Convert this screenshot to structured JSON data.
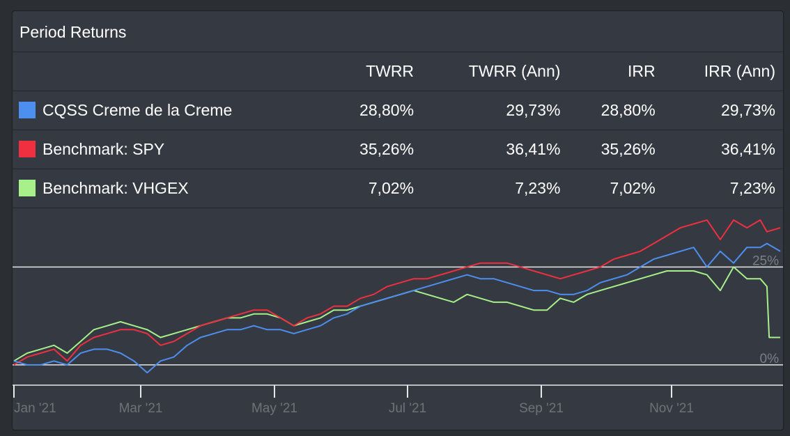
{
  "panel": {
    "title": "Period Returns"
  },
  "table": {
    "columns": [
      "TWRR",
      "TWRR (Ann)",
      "IRR",
      "IRR (Ann)"
    ],
    "rows": [
      {
        "name": "CQSS Creme de la Creme",
        "color": "#4d8fef",
        "values": [
          "28,80%",
          "29,73%",
          "28,80%",
          "29,73%"
        ]
      },
      {
        "name": "Benchmark: SPY",
        "color": "#ef3040",
        "values": [
          "35,26%",
          "36,41%",
          "35,26%",
          "36,41%"
        ]
      },
      {
        "name": "Benchmark: VHGEX",
        "color": "#a8f08a",
        "values": [
          "7,02%",
          "7,23%",
          "7,02%",
          "7,23%"
        ]
      }
    ]
  },
  "chart_data": {
    "type": "line",
    "x_ticks": [
      "Jan '21",
      "Mar '21",
      "May '21",
      "Jul '21",
      "Sep '21",
      "Nov '21"
    ],
    "y_ticks": [
      "0%",
      "25%"
    ],
    "ylim": [
      -5,
      40
    ],
    "grid": true,
    "series": [
      {
        "name": "Benchmark: VHGEX",
        "color": "#a8f08a",
        "x": [
          0,
          6,
          12,
          18,
          24,
          30,
          36,
          42,
          48,
          54,
          60,
          66,
          72,
          78,
          84,
          90,
          96,
          102,
          108,
          114,
          120,
          126,
          132,
          138,
          144,
          150,
          156,
          162,
          168,
          174,
          180,
          186,
          192,
          198,
          204,
          210,
          216,
          222,
          228,
          234,
          240,
          246,
          252,
          258,
          264,
          270,
          276,
          282,
          288,
          294,
          300,
          306,
          312,
          318,
          324,
          330,
          336,
          339,
          340,
          345
        ],
        "y": [
          1,
          3,
          4,
          5,
          3,
          6,
          9,
          10,
          11,
          10,
          9,
          7,
          8,
          9,
          10,
          11,
          12,
          12,
          13,
          13,
          12,
          10,
          11,
          12,
          14,
          14,
          15,
          16,
          17,
          18,
          19,
          18,
          17,
          16,
          18,
          17,
          16,
          16,
          15,
          14,
          14,
          17,
          16,
          18,
          19,
          20,
          21,
          22,
          23,
          24,
          24,
          24,
          23,
          19,
          25,
          22,
          22,
          20,
          7,
          7
        ]
      },
      {
        "name": "Benchmark: SPY",
        "color": "#ef3040",
        "x": [
          0,
          6,
          12,
          18,
          24,
          30,
          36,
          42,
          48,
          54,
          60,
          66,
          72,
          78,
          84,
          90,
          96,
          102,
          108,
          114,
          120,
          126,
          132,
          138,
          144,
          150,
          156,
          162,
          168,
          174,
          180,
          186,
          192,
          198,
          204,
          210,
          216,
          222,
          228,
          234,
          240,
          246,
          252,
          258,
          264,
          270,
          276,
          282,
          288,
          294,
          300,
          306,
          312,
          318,
          324,
          330,
          336,
          339,
          345
        ],
        "y": [
          0,
          2,
          3,
          4,
          1,
          5,
          7,
          8,
          9,
          9,
          8,
          5,
          6,
          8,
          10,
          11,
          12,
          13,
          14,
          14,
          12,
          10,
          12,
          13,
          15,
          15,
          17,
          18,
          20,
          21,
          22,
          22,
          23,
          24,
          25,
          26,
          26,
          26,
          25,
          24,
          23,
          22,
          23,
          24,
          25,
          27,
          28,
          29,
          31,
          33,
          35,
          36,
          37,
          32,
          37,
          35,
          37,
          34,
          35
        ]
      },
      {
        "name": "CQSS Creme de la Creme",
        "color": "#4d8fef",
        "x": [
          0,
          6,
          12,
          18,
          24,
          30,
          36,
          42,
          48,
          54,
          60,
          66,
          72,
          78,
          84,
          90,
          96,
          102,
          108,
          114,
          120,
          126,
          132,
          138,
          144,
          150,
          156,
          162,
          168,
          174,
          180,
          186,
          192,
          198,
          204,
          210,
          216,
          222,
          228,
          234,
          240,
          246,
          252,
          258,
          264,
          270,
          276,
          282,
          288,
          294,
          300,
          306,
          312,
          318,
          324,
          330,
          336,
          339,
          345
        ],
        "y": [
          1,
          0,
          0,
          1,
          0,
          3,
          4,
          4,
          3,
          1,
          -2,
          1,
          2,
          5,
          7,
          8,
          9,
          9,
          10,
          9,
          9,
          8,
          9,
          10,
          12,
          13,
          15,
          16,
          17,
          18,
          19,
          20,
          21,
          22,
          23,
          22,
          22,
          21,
          20,
          19,
          19,
          18,
          18,
          19,
          21,
          22,
          23,
          25,
          27,
          28,
          29,
          30,
          25,
          29,
          26,
          30,
          30,
          31,
          29
        ]
      }
    ]
  }
}
